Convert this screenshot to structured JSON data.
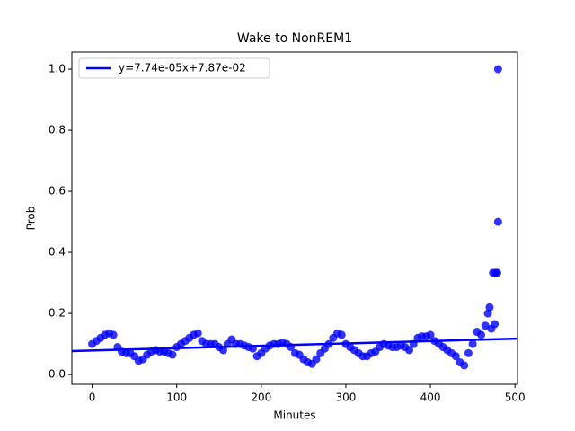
{
  "chart_data": {
    "type": "scatter",
    "title": "Wake to NonREM1",
    "x_label": "Minutes",
    "y_label": "Prob",
    "xlim": [
      -24,
      503
    ],
    "ylim": [
      -0.032,
      1.056
    ],
    "xticks": [
      0,
      100,
      200,
      300,
      400,
      500
    ],
    "yticks": [
      {
        "value": 0,
        "label": "0.0"
      },
      {
        "value": 0.2,
        "label": "0.2"
      },
      {
        "value": 0.4,
        "label": "0.4"
      },
      {
        "value": 0.6,
        "label": "0.6"
      },
      {
        "value": 0.8,
        "label": "0.8"
      },
      {
        "value": 1.0,
        "label": "1.0"
      }
    ],
    "color": "#0000ff",
    "legend": "upper left",
    "fit": {
      "name": "y=7.74e-05x+7.87e-02",
      "slope": 7.74e-05,
      "intercept": 0.0787
    },
    "x": [
      0,
      5,
      10,
      15,
      20,
      25,
      30,
      35,
      40,
      45,
      50,
      55,
      60,
      65,
      70,
      75,
      80,
      85,
      90,
      95,
      100,
      105,
      110,
      115,
      120,
      125,
      130,
      135,
      140,
      145,
      150,
      155,
      160,
      165,
      170,
      175,
      180,
      185,
      190,
      195,
      200,
      205,
      210,
      215,
      220,
      225,
      230,
      235,
      240,
      245,
      250,
      255,
      260,
      265,
      270,
      275,
      280,
      285,
      290,
      295,
      300,
      305,
      310,
      315,
      320,
      325,
      330,
      335,
      340,
      345,
      350,
      355,
      360,
      365,
      370,
      375,
      380,
      385,
      390,
      395,
      400,
      405,
      410,
      415,
      420,
      425,
      430,
      435,
      440,
      445,
      450,
      455,
      460,
      465,
      468,
      470,
      472,
      474,
      476,
      477,
      479,
      480,
      480
    ],
    "values": [
      0.1,
      0.11,
      0.12,
      0.13,
      0.135,
      0.13,
      0.09,
      0.075,
      0.07,
      0.07,
      0.06,
      0.045,
      0.05,
      0.065,
      0.075,
      0.08,
      0.075,
      0.075,
      0.07,
      0.065,
      0.09,
      0.1,
      0.11,
      0.12,
      0.13,
      0.135,
      0.11,
      0.1,
      0.1,
      0.1,
      0.09,
      0.08,
      0.1,
      0.115,
      0.1,
      0.1,
      0.095,
      0.09,
      0.085,
      0.06,
      0.07,
      0.085,
      0.095,
      0.1,
      0.1,
      0.105,
      0.1,
      0.09,
      0.07,
      0.065,
      0.05,
      0.04,
      0.035,
      0.05,
      0.07,
      0.085,
      0.1,
      0.12,
      0.135,
      0.13,
      0.1,
      0.09,
      0.08,
      0.07,
      0.06,
      0.06,
      0.07,
      0.075,
      0.09,
      0.1,
      0.095,
      0.09,
      0.09,
      0.095,
      0.09,
      0.08,
      0.1,
      0.12,
      0.125,
      0.125,
      0.13,
      0.11,
      0.1,
      0.09,
      0.08,
      0.07,
      0.06,
      0.04,
      0.03,
      0.07,
      0.1,
      0.14,
      0.13,
      0.16,
      0.2,
      0.22,
      0.15,
      0.333,
      0.165,
      0.333,
      0.333,
      1.0,
      0.5
    ]
  }
}
